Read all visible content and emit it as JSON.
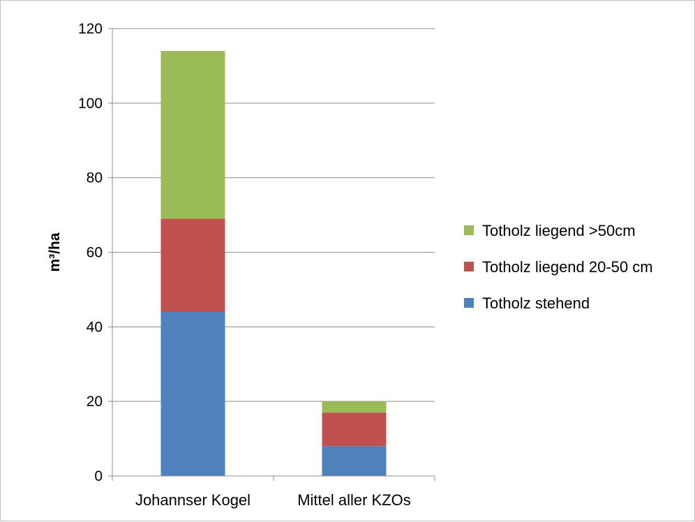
{
  "chart_data": {
    "type": "bar",
    "stacked": true,
    "categories": [
      "Johannser Kogel",
      "Mittel aller KZOs"
    ],
    "series": [
      {
        "name": "Totholz stehend",
        "values": [
          44,
          8
        ],
        "color": "#4f81bd"
      },
      {
        "name": "Totholz liegend 20-50 cm",
        "values": [
          25,
          9
        ],
        "color": "#c0504d"
      },
      {
        "name": "Totholz liegend >50cm",
        "values": [
          45,
          3
        ],
        "color": "#9bbb59"
      }
    ],
    "ylabel": "m³/ha",
    "ylim": [
      0,
      120
    ],
    "yticks": [
      0,
      20,
      40,
      60,
      80,
      100,
      120
    ],
    "grid": true,
    "legend": "right",
    "legend_order": [
      "Totholz liegend >50cm",
      "Totholz liegend 20-50 cm",
      "Totholz stehend"
    ]
  }
}
